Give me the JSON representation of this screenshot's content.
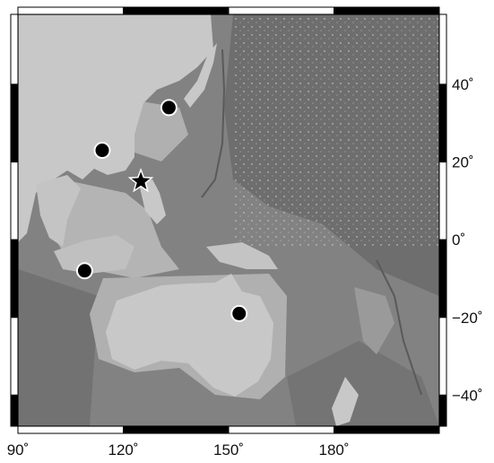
{
  "map": {
    "lat_labels": [
      {
        "lat": 40,
        "text": "40˚"
      },
      {
        "lat": 20,
        "text": "20˚"
      },
      {
        "lat": 0,
        "text": "0˚"
      },
      {
        "lat": -20,
        "text": "−20˚"
      },
      {
        "lat": -40,
        "text": "−40˚"
      }
    ],
    "lon_labels": [
      {
        "lon": 90,
        "text": "90˚"
      },
      {
        "lon": 120,
        "text": "120˚"
      },
      {
        "lon": 150,
        "text": "150˚"
      },
      {
        "lon": 180,
        "text": "180˚"
      }
    ],
    "extent": {
      "lon_min": 90,
      "lon_max": 210,
      "lat_min": -48,
      "lat_max": 58
    },
    "markers": [
      {
        "name": "marker-japan",
        "type": "circle",
        "lon": 133,
        "lat": 34
      },
      {
        "name": "marker-south-china",
        "type": "circle",
        "lon": 114,
        "lat": 23
      },
      {
        "name": "marker-indonesia",
        "type": "circle",
        "lon": 109,
        "lat": -8
      },
      {
        "name": "marker-australia-east",
        "type": "circle",
        "lon": 153,
        "lat": -19
      },
      {
        "name": "marker-star-luzon",
        "type": "star",
        "lon": 125,
        "lat": 15
      }
    ],
    "colors": {
      "deep_ocean": "#6e6e6e",
      "ocean": "#828282",
      "shelf": "#b4b4b4",
      "land": "#c8c8c8",
      "highland": "#9a9a9a",
      "frame_black": "#000000",
      "frame_white": "#ffffff"
    }
  }
}
